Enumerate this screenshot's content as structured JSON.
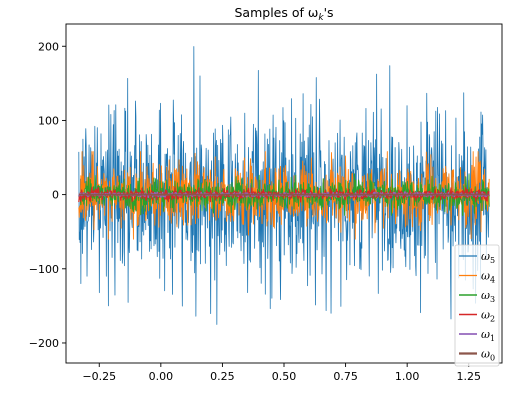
{
  "chart_data": {
    "type": "line",
    "title": "Samples of ωk's",
    "title_main": "Samples of ω",
    "title_sub": "k",
    "title_suffix": "'s",
    "xlim": [
      -0.385,
      1.385
    ],
    "ylim": [
      -227,
      230
    ],
    "x_range": [
      -0.333,
      1.333
    ],
    "num_points": 1000,
    "xticks": [
      -0.25,
      0.0,
      0.25,
      0.5,
      0.75,
      1.0,
      1.25
    ],
    "xtick_labels": [
      "−0.25",
      "0.00",
      "0.25",
      "0.50",
      "0.75",
      "1.00",
      "1.25"
    ],
    "yticks": [
      -200,
      -100,
      0,
      100,
      200
    ],
    "ytick_labels": [
      "−200",
      "−100",
      "0",
      "100",
      "200"
    ],
    "grid": false,
    "legend_position": "lower-right",
    "series": [
      {
        "name": "ω5",
        "sub": "5",
        "color": "#1f77b4",
        "amplitude_std": 62,
        "max": 209,
        "min": -195
      },
      {
        "name": "ω4",
        "sub": "4",
        "color": "#ff7f0e",
        "amplitude_std": 22,
        "max": 58,
        "min": -60
      },
      {
        "name": "ω3",
        "sub": "3",
        "color": "#2ca02c",
        "amplitude_std": 10,
        "max": 28,
        "min": -28
      },
      {
        "name": "ω2",
        "sub": "2",
        "color": "#d62728",
        "amplitude_std": 3.5,
        "max": 10,
        "min": -10
      },
      {
        "name": "ω1",
        "sub": "1",
        "color": "#9467bd",
        "amplitude_std": 1.2,
        "max": 4,
        "min": -4
      },
      {
        "name": "ω0",
        "sub": "0",
        "color": "#8c564b",
        "amplitude_std": 0.2,
        "max": 1,
        "min": -1
      }
    ]
  }
}
